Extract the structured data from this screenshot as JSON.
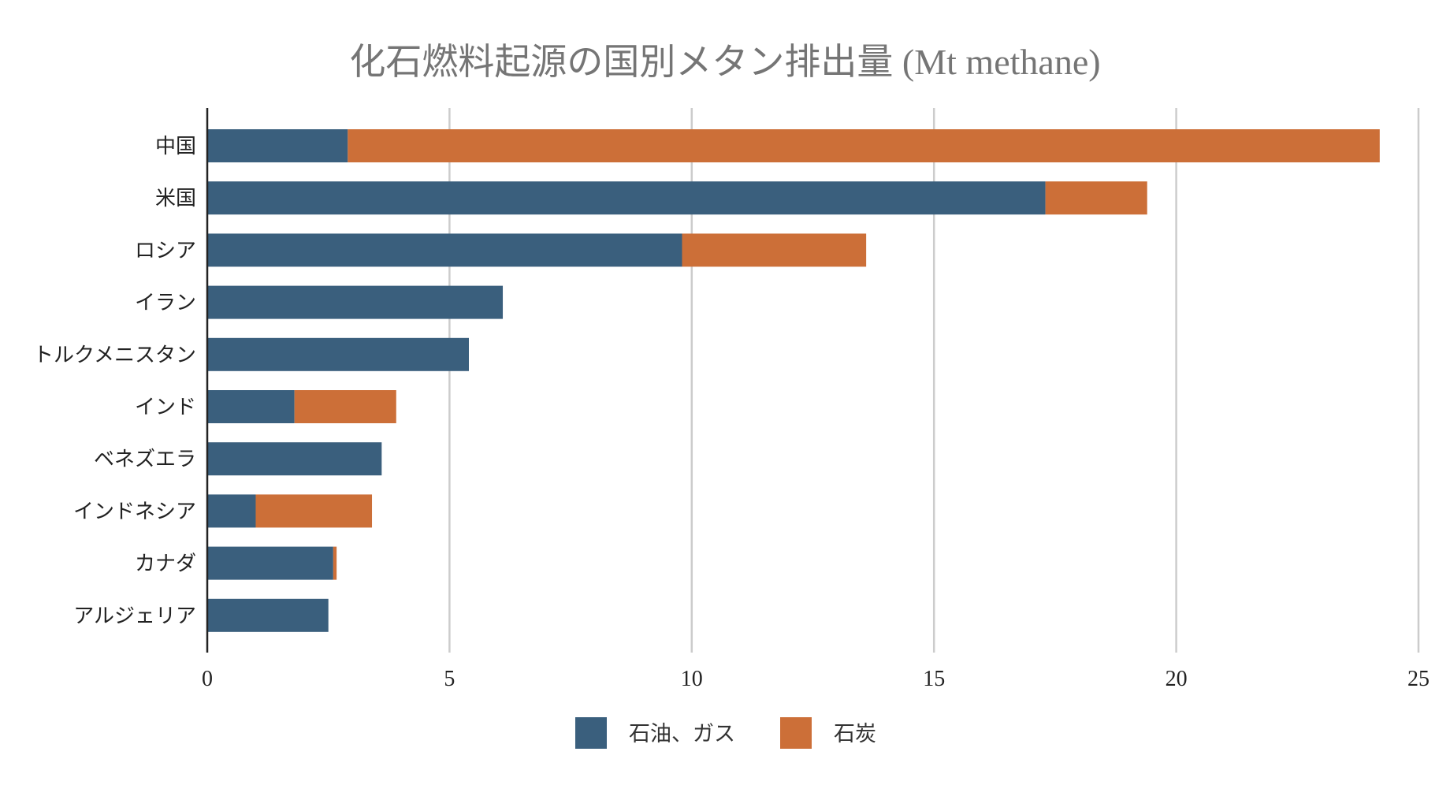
{
  "chart_data": {
    "type": "bar",
    "orientation": "horizontal",
    "stacked": true,
    "title": "化石燃料起源の国別メタン排出量 (Mt methane)",
    "categories": [
      "中国",
      "米国",
      "ロシア",
      "イラン",
      "トルクメニスタン",
      "インド",
      "ベネズエラ",
      "インドネシア",
      "カナダ",
      "アルジェリア"
    ],
    "series": [
      {
        "name": "石油、ガス",
        "color": "#3a5f7d",
        "values": [
          2.9,
          17.3,
          9.8,
          6.1,
          5.4,
          1.8,
          3.6,
          1.0,
          2.6,
          2.5
        ]
      },
      {
        "name": "石炭",
        "color": "#cc6f38",
        "values": [
          21.3,
          2.1,
          3.8,
          0.0,
          0.0,
          2.1,
          0.0,
          2.4,
          0.07,
          0.0
        ]
      }
    ],
    "xlim": [
      0,
      25
    ],
    "xticks": [
      0,
      5,
      10,
      15,
      20,
      25
    ],
    "grid": true,
    "legend": "bottom-center",
    "xlabel": "",
    "ylabel": ""
  }
}
